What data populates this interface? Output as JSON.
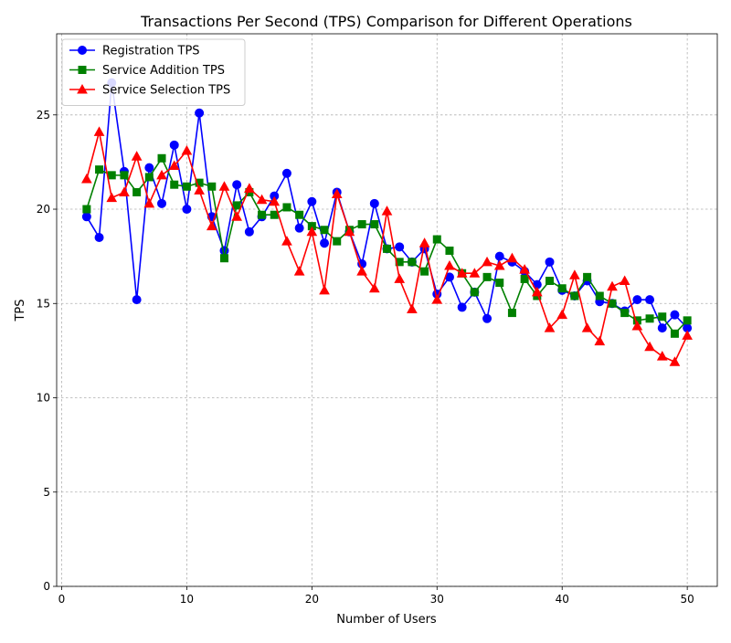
{
  "chart_data": {
    "type": "line",
    "title": "Transactions Per Second (TPS) Comparison for Different Operations",
    "xlabel": "Number of Users",
    "ylabel": "TPS",
    "xlim": [
      -0.4,
      52.4
    ],
    "ylim": [
      0,
      29.3
    ],
    "xticks": [
      0,
      10,
      20,
      30,
      40,
      50
    ],
    "yticks": [
      0,
      5,
      10,
      15,
      20,
      25
    ],
    "grid": true,
    "legend_position": "top-left",
    "x": [
      2,
      3,
      4,
      5,
      6,
      7,
      8,
      9,
      10,
      11,
      12,
      13,
      14,
      15,
      16,
      17,
      18,
      19,
      20,
      21,
      22,
      23,
      24,
      25,
      26,
      27,
      28,
      29,
      30,
      31,
      32,
      33,
      34,
      35,
      36,
      37,
      38,
      39,
      40,
      41,
      42,
      43,
      44,
      45,
      46,
      47,
      48,
      49,
      50
    ],
    "series": [
      {
        "name": "Registration TPS",
        "color": "#0000ff",
        "marker": "circle",
        "values": [
          19.6,
          18.5,
          26.7,
          22.0,
          15.2,
          22.2,
          20.3,
          23.4,
          20.0,
          25.1,
          19.6,
          17.8,
          21.3,
          18.8,
          19.6,
          20.7,
          21.9,
          19.0,
          20.4,
          18.2,
          20.9,
          18.8,
          17.1,
          20.3,
          17.9,
          18.0,
          17.2,
          17.9,
          15.5,
          16.4,
          14.8,
          15.6,
          14.2,
          17.5,
          17.2,
          16.7,
          16.0,
          17.2,
          15.7,
          15.4,
          16.2,
          15.1,
          15.0,
          14.6,
          15.2,
          15.2,
          13.7,
          14.4,
          13.7
        ]
      },
      {
        "name": "Service Addition TPS",
        "color": "#008000",
        "marker": "square",
        "values": [
          20.0,
          22.1,
          21.8,
          21.8,
          20.9,
          21.7,
          22.7,
          21.3,
          21.2,
          21.4,
          21.2,
          17.4,
          20.2,
          20.9,
          19.7,
          19.7,
          20.1,
          19.7,
          19.1,
          18.9,
          18.3,
          18.9,
          19.2,
          19.2,
          17.9,
          17.2,
          17.2,
          16.7,
          18.4,
          17.8,
          16.6,
          15.6,
          16.4,
          16.1,
          14.5,
          16.3,
          15.4,
          16.2,
          15.8,
          15.4,
          16.4,
          15.4,
          15.0,
          14.5,
          14.1,
          14.2,
          14.3,
          13.4,
          14.1
        ]
      },
      {
        "name": "Service Selection TPS",
        "color": "#ff0000",
        "marker": "triangle",
        "values": [
          21.6,
          24.1,
          20.6,
          20.9,
          22.8,
          20.3,
          21.8,
          22.3,
          23.1,
          21.0,
          19.1,
          21.2,
          19.6,
          21.1,
          20.5,
          20.4,
          18.3,
          16.7,
          18.8,
          15.7,
          20.8,
          18.8,
          16.7,
          15.8,
          19.9,
          16.3,
          14.7,
          18.2,
          15.2,
          17.0,
          16.6,
          16.6,
          17.2,
          17.0,
          17.4,
          16.8,
          15.6,
          13.7,
          14.4,
          16.5,
          13.7,
          13.0,
          15.9,
          16.2,
          13.8,
          12.7,
          12.2,
          11.9,
          13.3
        ]
      }
    ]
  }
}
